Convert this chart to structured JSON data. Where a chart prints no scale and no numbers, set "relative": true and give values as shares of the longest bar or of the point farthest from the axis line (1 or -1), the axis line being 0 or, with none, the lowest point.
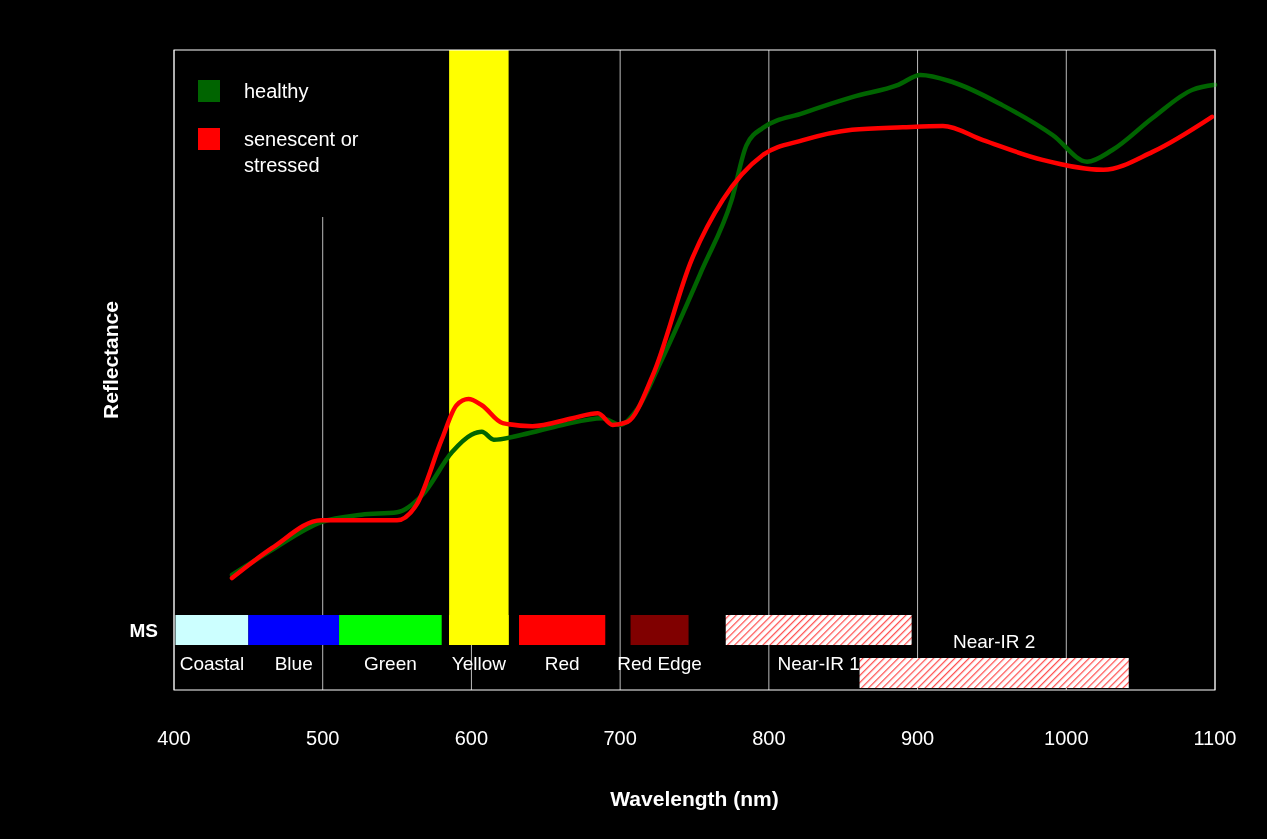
{
  "chart_data": {
    "type": "line",
    "xlabel": "Wavelength (nm)",
    "ylabel": "Reflectance",
    "relative": true,
    "xlim": [
      400,
      1100
    ],
    "xticks": [
      400,
      500,
      600,
      700,
      800,
      900,
      1000,
      1100
    ],
    "grid": "x",
    "legend": "top left",
    "line_style": "solid",
    "marker": "none",
    "series": [
      {
        "name": "healthy",
        "color": "#006400",
        "x": [
          439,
          466,
          499,
          526,
          550,
          567,
          587,
          600,
          607,
          615,
          634,
          661,
          688,
          700,
          711,
          728,
          755,
          775,
          785,
          796,
          823,
          856,
          887,
          902,
          923,
          957,
          991,
          1014,
          1031,
          1058,
          1085,
          1100
        ],
        "values": [
          0.187,
          0.228,
          0.273,
          0.285,
          0.289,
          0.317,
          0.387,
          0.415,
          0.42,
          0.407,
          0.415,
          0.431,
          0.442,
          0.431,
          0.455,
          0.537,
          0.683,
          0.797,
          0.886,
          0.914,
          0.938,
          0.964,
          0.984,
          1.0,
          0.989,
          0.951,
          0.902,
          0.859,
          0.878,
          0.93,
          0.976,
          0.984
        ]
      },
      {
        "name": "senescent or stressed",
        "color": "#ff0000",
        "x": [
          439,
          466,
          499,
          526,
          550,
          563,
          580,
          590,
          598,
          607,
          621,
          641,
          668,
          685,
          695,
          705,
          722,
          748,
          769,
          796,
          823,
          856,
          890,
          917,
          944,
          984,
          1025,
          1058,
          1098
        ],
        "values": [
          0.182,
          0.231,
          0.276,
          0.276,
          0.276,
          0.301,
          0.407,
          0.463,
          0.473,
          0.463,
          0.434,
          0.429,
          0.442,
          0.45,
          0.431,
          0.436,
          0.512,
          0.699,
          0.797,
          0.87,
          0.894,
          0.911,
          0.915,
          0.917,
          0.894,
          0.862,
          0.846,
          0.875,
          0.932
        ]
      }
    ],
    "bands": [
      {
        "axis": "x",
        "from": 585,
        "to": 625,
        "color": "#ffff00"
      },
      {
        "axis": "x",
        "from": 401,
        "to": 450,
        "label": "Coastal",
        "color": "#ccffff"
      },
      {
        "axis": "x",
        "from": 450,
        "to": 511,
        "label": "Blue",
        "color": "#0000ff"
      },
      {
        "axis": "x",
        "from": 511,
        "to": 580,
        "label": "Green",
        "color": "#00ff00"
      },
      {
        "axis": "x",
        "from": 585,
        "to": 625,
        "label": "Yellow",
        "color": "#ffff00"
      },
      {
        "axis": "x",
        "from": 632,
        "to": 690,
        "label": "Red",
        "color": "#ff0000"
      },
      {
        "axis": "x",
        "from": 707,
        "to": 746,
        "label": "Red Edge",
        "color": "#800000"
      },
      {
        "axis": "x",
        "from": 771,
        "to": 896,
        "label": "Near-IR 1",
        "color": "#ff5050"
      },
      {
        "axis": "x",
        "from": 861,
        "to": 1042,
        "label": "Near-IR 2",
        "color": "#ff5050"
      }
    ],
    "annotations": [
      "MS"
    ]
  }
}
